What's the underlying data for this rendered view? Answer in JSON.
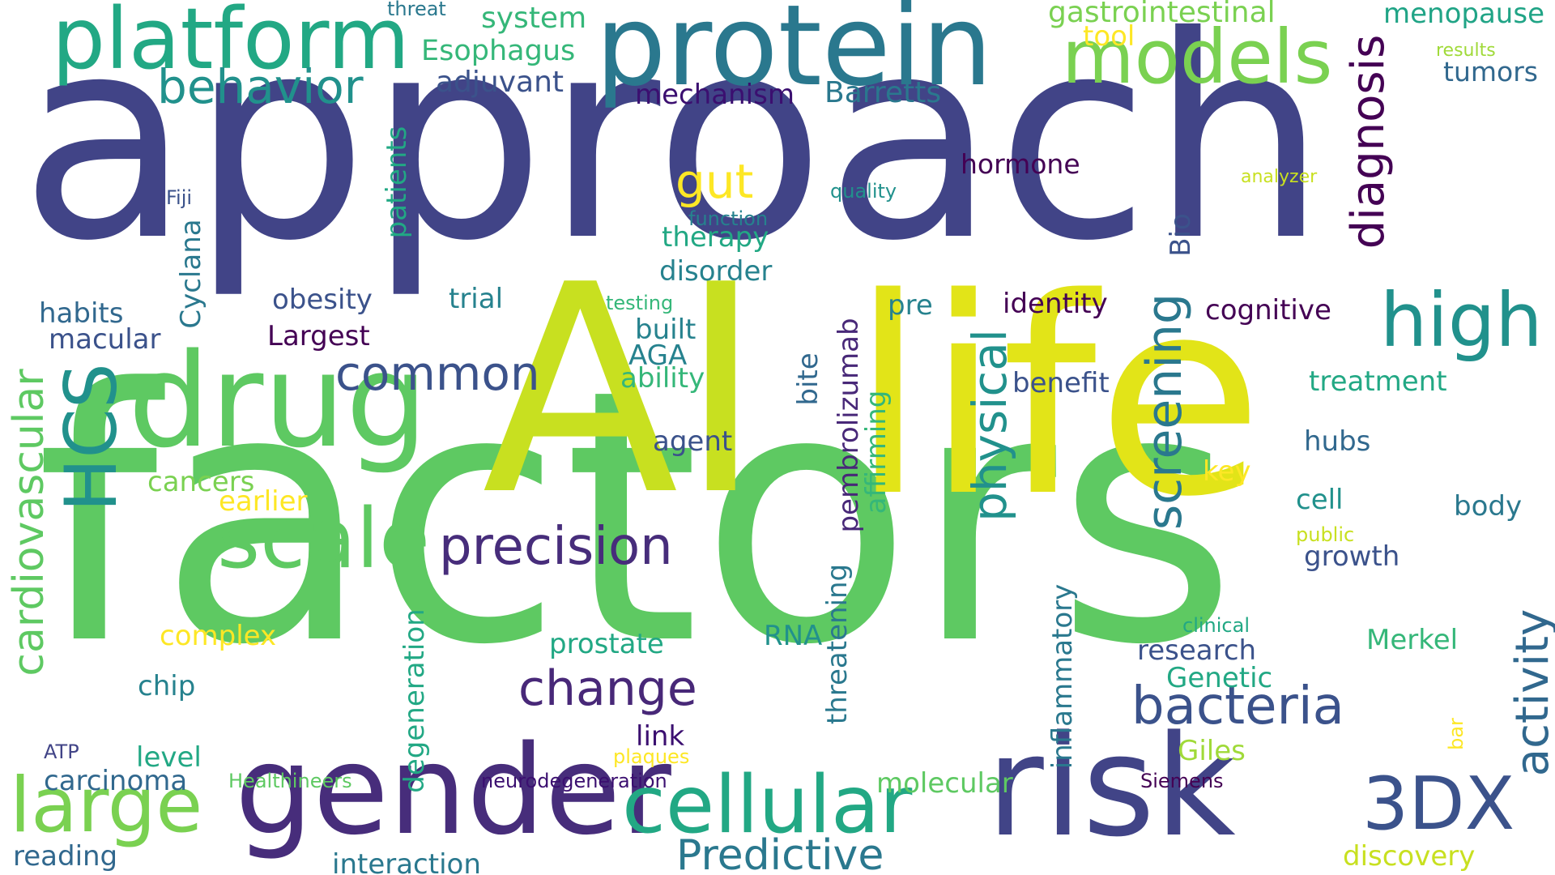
{
  "words": [
    {
      "key": "approach",
      "text": "approach",
      "color": "#414487"
    },
    {
      "key": "factors",
      "text": "factors",
      "color": "#5ec962"
    },
    {
      "key": "ai",
      "text": "AI",
      "color": "#c8e020"
    },
    {
      "key": "life",
      "text": "life",
      "color": "#e2e418"
    },
    {
      "key": "protein",
      "text": "protein",
      "color": "#2a788e"
    },
    {
      "key": "platform",
      "text": "platform",
      "color": "#22a884"
    },
    {
      "key": "drug",
      "text": "drug",
      "color": "#5ec962"
    },
    {
      "key": "gender",
      "text": "gender",
      "color": "#472d7b"
    },
    {
      "key": "risk",
      "text": "risk",
      "color": "#414487"
    },
    {
      "key": "models",
      "text": "models",
      "color": "#7ad151"
    },
    {
      "key": "cellular",
      "text": "cellular",
      "color": "#22a884"
    },
    {
      "key": "large",
      "text": "large",
      "color": "#7ad151"
    },
    {
      "key": "scale",
      "text": "scale",
      "color": "#5ec962"
    },
    {
      "key": "high",
      "text": "high",
      "color": "#21918c"
    },
    {
      "key": "3dx",
      "text": "3DX",
      "color": "#3b528b"
    },
    {
      "key": "precision",
      "text": "precision",
      "color": "#472d7b"
    },
    {
      "key": "bacteria",
      "text": "bacteria",
      "color": "#3b528b"
    },
    {
      "key": "change",
      "text": "change",
      "color": "#482878"
    },
    {
      "key": "predictive",
      "text": "Predictive",
      "color": "#2a788e"
    },
    {
      "key": "behavior",
      "text": "behavior",
      "color": "#21918c"
    },
    {
      "key": "common",
      "text": "common",
      "color": "#3b528b"
    },
    {
      "key": "gut",
      "text": "gut",
      "color": "#fde725"
    },
    {
      "key": "hcs",
      "text": "HCS",
      "color": "#21918c"
    },
    {
      "key": "cardiovascular",
      "text": "cardiovascular",
      "color": "#5ec962"
    },
    {
      "key": "physical",
      "text": "physical",
      "color": "#21918c"
    },
    {
      "key": "screening",
      "text": "screening",
      "color": "#2a788e"
    },
    {
      "key": "diagnosis",
      "text": "diagnosis",
      "color": "#440154"
    },
    {
      "key": "activity",
      "text": "activity",
      "color": "#31688e"
    },
    {
      "key": "pembrolizumab",
      "text": "pembrolizumab",
      "color": "#482878"
    },
    {
      "key": "threatening",
      "text": "threatening",
      "color": "#2a788e"
    },
    {
      "key": "inflammatory",
      "text": "inflammatory",
      "color": "#2a788e"
    },
    {
      "key": "degeneration",
      "text": "degeneration",
      "color": "#22a884"
    },
    {
      "key": "gastrointestinal",
      "text": "gastrointestinal",
      "color": "#7ad151"
    },
    {
      "key": "menopause",
      "text": "menopause",
      "color": "#20a486"
    },
    {
      "key": "system",
      "text": "system",
      "color": "#35b779"
    },
    {
      "key": "esophagus",
      "text": "Esophagus",
      "color": "#35b779"
    },
    {
      "key": "threat",
      "text": "threat",
      "color": "#2a788e"
    },
    {
      "key": "adjuvant",
      "text": "adjuvant",
      "color": "#3b528b"
    },
    {
      "key": "mechanism",
      "text": "mechanism",
      "color": "#3b0f70"
    },
    {
      "key": "barretts",
      "text": "Barretts",
      "color": "#2a788e"
    },
    {
      "key": "tool",
      "text": "tool",
      "color": "#fde725"
    },
    {
      "key": "results",
      "text": "results",
      "color": "#a0da39"
    },
    {
      "key": "tumors",
      "text": "tumors",
      "color": "#31688e"
    },
    {
      "key": "hormone",
      "text": "hormone",
      "color": "#440154"
    },
    {
      "key": "analyzer",
      "text": "analyzer",
      "color": "#c8e020"
    },
    {
      "key": "quality",
      "text": "quality",
      "color": "#21918c"
    },
    {
      "key": "function",
      "text": "function",
      "color": "#26828e"
    },
    {
      "key": "therapy",
      "text": "therapy",
      "color": "#22a884"
    },
    {
      "key": "disorder",
      "text": "disorder",
      "color": "#26828e"
    },
    {
      "key": "fiji",
      "text": "Fiji",
      "color": "#3b528b"
    },
    {
      "key": "cyclana",
      "text": "Cyclana",
      "color": "#2a788e"
    },
    {
      "key": "patients",
      "text": "patients",
      "color": "#22a884"
    },
    {
      "key": "habits",
      "text": "habits",
      "color": "#31688e"
    },
    {
      "key": "macular",
      "text": "macular",
      "color": "#3b528b"
    },
    {
      "key": "obesity",
      "text": "obesity",
      "color": "#3b528b"
    },
    {
      "key": "trial",
      "text": "trial",
      "color": "#26828e"
    },
    {
      "key": "testing",
      "text": "testing",
      "color": "#35b779"
    },
    {
      "key": "largest",
      "text": "Largest",
      "color": "#440154"
    },
    {
      "key": "built",
      "text": "built",
      "color": "#26828e"
    },
    {
      "key": "aga",
      "text": "AGA",
      "color": "#26828e"
    },
    {
      "key": "ability",
      "text": "ability",
      "color": "#35b779"
    },
    {
      "key": "pre",
      "text": "pre",
      "color": "#26828e"
    },
    {
      "key": "identity",
      "text": "identity",
      "color": "#440154"
    },
    {
      "key": "bio",
      "text": "Bio",
      "color": "#3b528b"
    },
    {
      "key": "cognitive",
      "text": "cognitive",
      "color": "#440154"
    },
    {
      "key": "benefit",
      "text": "benefit",
      "color": "#3b528b"
    },
    {
      "key": "treatment",
      "text": "treatment",
      "color": "#22a884"
    },
    {
      "key": "bite",
      "text": "bite",
      "color": "#31688e"
    },
    {
      "key": "affirming",
      "text": "affirming",
      "color": "#35b779"
    },
    {
      "key": "agent",
      "text": "agent",
      "color": "#3b528b"
    },
    {
      "key": "hubs",
      "text": "hubs",
      "color": "#31688e"
    },
    {
      "key": "key",
      "text": "key",
      "color": "#fde725"
    },
    {
      "key": "cell",
      "text": "cell",
      "color": "#21918c"
    },
    {
      "key": "body",
      "text": "body",
      "color": "#2a788e"
    },
    {
      "key": "public",
      "text": "public",
      "color": "#c8e020"
    },
    {
      "key": "growth",
      "text": "growth",
      "color": "#3b528b"
    },
    {
      "key": "cancers",
      "text": "cancers",
      "color": "#7ad151"
    },
    {
      "key": "earlier",
      "text": "earlier",
      "color": "#fde725"
    },
    {
      "key": "complex",
      "text": "complex",
      "color": "#fde725"
    },
    {
      "key": "prostate",
      "text": "prostate",
      "color": "#22a884"
    },
    {
      "key": "rna",
      "text": "RNA",
      "color": "#21918c"
    },
    {
      "key": "clinical",
      "text": "clinical",
      "color": "#22a884"
    },
    {
      "key": "research",
      "text": "research",
      "color": "#3b528b"
    },
    {
      "key": "merkel",
      "text": "Merkel",
      "color": "#35b779"
    },
    {
      "key": "genetic",
      "text": "Genetic",
      "color": "#22a884"
    },
    {
      "key": "chip",
      "text": "chip",
      "color": "#26828e"
    },
    {
      "key": "link",
      "text": "link",
      "color": "#3b0f70"
    },
    {
      "key": "plaques",
      "text": "plaques",
      "color": "#fde725"
    },
    {
      "key": "giles",
      "text": "Giles",
      "color": "#a0da39"
    },
    {
      "key": "bar",
      "text": "bar",
      "color": "#fde725"
    },
    {
      "key": "atp",
      "text": "ATP",
      "color": "#414487"
    },
    {
      "key": "level",
      "text": "level",
      "color": "#22a884"
    },
    {
      "key": "carcinoma",
      "text": "carcinoma",
      "color": "#31688e"
    },
    {
      "key": "healthineers",
      "text": "Healthineers",
      "color": "#5ec962"
    },
    {
      "key": "neurodegeneration",
      "text": "neurodegeneration",
      "color": "#3b0f70"
    },
    {
      "key": "molecular",
      "text": "molecular",
      "color": "#5ec962"
    },
    {
      "key": "siemens",
      "text": "Siemens",
      "color": "#440154"
    },
    {
      "key": "reading",
      "text": "reading",
      "color": "#31688e"
    },
    {
      "key": "interaction",
      "text": "interaction",
      "color": "#2a788e"
    },
    {
      "key": "discovery",
      "text": "discovery",
      "color": "#c8e020"
    }
  ]
}
